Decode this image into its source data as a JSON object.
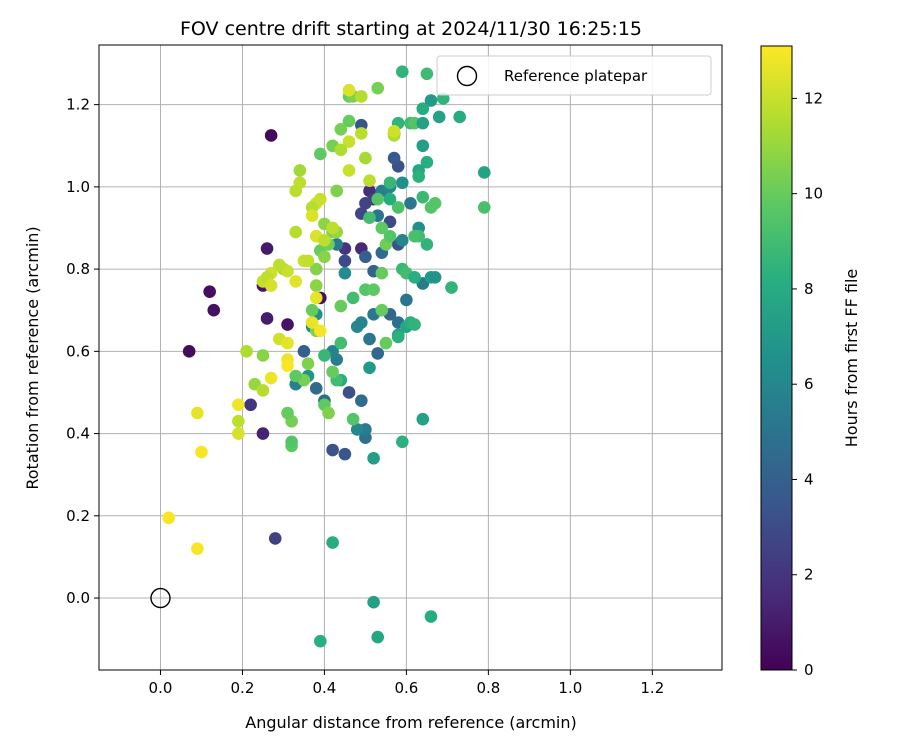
{
  "chart_data": {
    "type": "scatter",
    "title": "FOV centre drift starting at 2024/11/30 16:25:15",
    "xlabel": "Angular distance from reference (arcmin)",
    "ylabel": "Rotation from reference (arcmin)",
    "xlim": [
      -0.15,
      1.37
    ],
    "ylim": [
      -0.175,
      1.345
    ],
    "xticks": [
      0.0,
      0.2,
      0.4,
      0.6,
      0.8,
      1.0,
      1.2
    ],
    "yticks": [
      0.0,
      0.2,
      0.4,
      0.6,
      0.8,
      1.0,
      1.2
    ],
    "xtick_labels": [
      "0.0",
      "0.2",
      "0.4",
      "0.6",
      "0.8",
      "1.0",
      "1.2"
    ],
    "ytick_labels": [
      "0.0",
      "0.2",
      "0.4",
      "0.6",
      "0.8",
      "1.0",
      "1.2"
    ],
    "grid": true,
    "colormap": "viridis",
    "colorbar": {
      "label": "Hours from first FF file",
      "min": 0,
      "max": 13.1,
      "ticks": [
        0,
        2,
        4,
        6,
        8,
        10,
        12
      ],
      "tick_labels": [
        "0",
        "2",
        "4",
        "6",
        "8",
        "10",
        "12"
      ]
    },
    "legend": {
      "placement": "top-right",
      "entries": [
        "Reference platepar"
      ]
    },
    "reference": {
      "x": 0.0,
      "y": 0.0,
      "label": "Reference platepar"
    },
    "points": [
      [
        0.27,
        1.125,
        0.3
      ],
      [
        0.49,
        1.15,
        3.5
      ],
      [
        0.25,
        0.76,
        0.8
      ],
      [
        0.26,
        0.85,
        0.9
      ],
      [
        0.26,
        0.68,
        1.0
      ],
      [
        0.31,
        0.665,
        0.7
      ],
      [
        0.39,
        0.73,
        0.5
      ],
      [
        0.12,
        0.745,
        0.5
      ],
      [
        0.13,
        0.7,
        0.6
      ],
      [
        0.07,
        0.6,
        0.4
      ],
      [
        0.25,
        0.4,
        1.3
      ],
      [
        0.22,
        0.47,
        2.0
      ],
      [
        0.28,
        0.145,
        2.5
      ],
      [
        0.49,
        0.85,
        1.5
      ],
      [
        0.45,
        0.85,
        2.0
      ],
      [
        0.51,
        0.99,
        1.7
      ],
      [
        0.52,
        0.97,
        2.3
      ],
      [
        0.5,
        0.96,
        2.6
      ],
      [
        0.45,
        0.82,
        3.0
      ],
      [
        0.46,
        0.5,
        3.2
      ],
      [
        0.42,
        0.36,
        3.3
      ],
      [
        0.45,
        0.35,
        3.5
      ],
      [
        0.35,
        0.6,
        4.0
      ],
      [
        0.38,
        0.51,
        4.5
      ],
      [
        0.4,
        0.48,
        4.5
      ],
      [
        0.49,
        0.935,
        2.7
      ],
      [
        0.56,
        0.915,
        2.9
      ],
      [
        0.58,
        1.05,
        3.2
      ],
      [
        0.57,
        1.07,
        3.7
      ],
      [
        0.57,
        1.13,
        3.0
      ],
      [
        0.58,
        0.86,
        3.4
      ],
      [
        0.5,
        0.83,
        4.0
      ],
      [
        0.52,
        0.795,
        4.2
      ],
      [
        0.54,
        0.84,
        4.5
      ],
      [
        0.56,
        0.69,
        4.3
      ],
      [
        0.58,
        0.67,
        4.8
      ],
      [
        0.6,
        0.725,
        5.0
      ],
      [
        0.61,
        0.96,
        5.2
      ],
      [
        0.53,
        0.93,
        5.0
      ],
      [
        0.54,
        0.99,
        5.5
      ],
      [
        0.56,
        1.0,
        6.0
      ],
      [
        0.59,
        1.01,
        6.5
      ],
      [
        0.59,
        0.87,
        6.0
      ],
      [
        0.63,
        0.9,
        6.5
      ],
      [
        0.64,
        0.765,
        5.5
      ],
      [
        0.66,
        0.78,
        7.0
      ],
      [
        0.67,
        0.78,
        6.8
      ],
      [
        0.52,
        0.69,
        5.3
      ],
      [
        0.53,
        0.595,
        4.4
      ],
      [
        0.51,
        0.63,
        5.1
      ],
      [
        0.49,
        0.48,
        4.6
      ],
      [
        0.5,
        0.39,
        4.9
      ],
      [
        0.5,
        0.41,
        5.4
      ],
      [
        0.48,
        0.41,
        6.0
      ],
      [
        0.43,
        0.58,
        5.6
      ],
      [
        0.42,
        0.6,
        5.8
      ],
      [
        0.43,
        0.86,
        5.5
      ],
      [
        0.45,
        0.79,
        6.3
      ],
      [
        0.33,
        0.52,
        5.7
      ],
      [
        0.36,
        0.54,
        6.7
      ],
      [
        0.37,
        0.66,
        6.2
      ],
      [
        0.38,
        0.69,
        6.5
      ],
      [
        0.48,
        0.66,
        6.1
      ],
      [
        0.49,
        0.67,
        5.9
      ],
      [
        0.51,
        0.56,
        7.0
      ],
      [
        0.52,
        0.34,
        7.3
      ],
      [
        0.59,
        0.38,
        8.3
      ],
      [
        0.64,
        0.435,
        7.5
      ],
      [
        0.42,
        0.135,
        8.0
      ],
      [
        0.52,
        -0.01,
        7.4
      ],
      [
        0.53,
        -0.095,
        7.8
      ],
      [
        0.66,
        -0.045,
        8.0
      ],
      [
        0.39,
        -0.105,
        8.2
      ],
      [
        0.58,
        0.64,
        7.2
      ],
      [
        0.58,
        0.635,
        8.3
      ],
      [
        0.6,
        0.66,
        7.8
      ],
      [
        0.61,
        0.67,
        8.2
      ],
      [
        0.62,
        0.665,
        8.5
      ],
      [
        0.65,
        0.86,
        8.5
      ],
      [
        0.63,
        0.88,
        9.0
      ],
      [
        0.62,
        0.88,
        9.2
      ],
      [
        0.59,
        0.8,
        8.8
      ],
      [
        0.6,
        0.79,
        9.0
      ],
      [
        0.56,
        1.01,
        8.7
      ],
      [
        0.56,
        0.97,
        8.0
      ],
      [
        0.58,
        0.95,
        9.3
      ],
      [
        0.58,
        1.155,
        8.5
      ],
      [
        0.61,
        1.155,
        9.0
      ],
      [
        0.62,
        1.155,
        9.5
      ],
      [
        0.59,
        1.28,
        8.5
      ],
      [
        0.65,
        1.275,
        8.9
      ],
      [
        0.64,
        1.155,
        7.5
      ],
      [
        0.66,
        1.21,
        7.0
      ],
      [
        0.68,
        1.17,
        7.5
      ],
      [
        0.73,
        1.17,
        8.0
      ],
      [
        0.69,
        1.215,
        8.5
      ],
      [
        0.64,
        1.19,
        8.0
      ],
      [
        0.64,
        1.1,
        7.3
      ],
      [
        0.65,
        1.06,
        8.2
      ],
      [
        0.63,
        1.04,
        7.8
      ],
      [
        0.63,
        1.025,
        8.3
      ],
      [
        0.64,
        0.975,
        8.8
      ],
      [
        0.66,
        0.95,
        9.5
      ],
      [
        0.67,
        0.96,
        9.5
      ],
      [
        0.79,
        1.035,
        7.5
      ],
      [
        0.79,
        0.95,
        9.2
      ],
      [
        0.71,
        0.755,
        8.5
      ],
      [
        0.62,
        0.78,
        8.2
      ],
      [
        0.53,
        0.97,
        9.5
      ],
      [
        0.51,
        0.925,
        9.0
      ],
      [
        0.5,
        0.75,
        9.5
      ],
      [
        0.52,
        0.75,
        9.8
      ],
      [
        0.54,
        0.79,
        10.0
      ],
      [
        0.54,
        0.7,
        10.0
      ],
      [
        0.55,
        0.62,
        10.0
      ],
      [
        0.55,
        0.86,
        10.2
      ],
      [
        0.54,
        0.9,
        9.8
      ],
      [
        0.56,
        0.88,
        9.5
      ],
      [
        0.47,
        0.73,
        9.0
      ],
      [
        0.47,
        0.435,
        9.5
      ],
      [
        0.44,
        0.53,
        8.0
      ],
      [
        0.43,
        0.53,
        9.0
      ],
      [
        0.44,
        0.62,
        9.0
      ],
      [
        0.4,
        0.59,
        8.7
      ],
      [
        0.42,
        0.55,
        10.0
      ],
      [
        0.4,
        0.47,
        9.8
      ],
      [
        0.41,
        0.45,
        10.5
      ],
      [
        0.35,
        0.53,
        10.3
      ],
      [
        0.36,
        0.57,
        10.5
      ],
      [
        0.33,
        0.54,
        9.8
      ],
      [
        0.32,
        0.43,
        10.3
      ],
      [
        0.32,
        0.37,
        9.8
      ],
      [
        0.32,
        0.38,
        9.5
      ],
      [
        0.31,
        0.45,
        10.0
      ],
      [
        0.44,
        0.71,
        10.0
      ],
      [
        0.38,
        0.65,
        10.5
      ],
      [
        0.37,
        0.7,
        10.0
      ],
      [
        0.38,
        0.76,
        10.8
      ],
      [
        0.38,
        0.8,
        10.6
      ],
      [
        0.39,
        0.845,
        10.0
      ],
      [
        0.41,
        0.86,
        10.2
      ],
      [
        0.4,
        0.83,
        10.7
      ],
      [
        0.42,
        0.89,
        10.5
      ],
      [
        0.43,
        0.89,
        11.0
      ],
      [
        0.4,
        0.91,
        10.8
      ],
      [
        0.39,
        1.08,
        9.8
      ],
      [
        0.42,
        1.1,
        10.3
      ],
      [
        0.44,
        1.14,
        10.3
      ],
      [
        0.46,
        1.16,
        10.0
      ],
      [
        0.46,
        1.22,
        10.0
      ],
      [
        0.47,
        1.22,
        10.5
      ],
      [
        0.53,
        1.24,
        10.3
      ],
      [
        0.49,
        1.22,
        11.6
      ],
      [
        0.46,
        1.235,
        12.4
      ],
      [
        0.49,
        1.13,
        11.7
      ],
      [
        0.46,
        1.11,
        12.0
      ],
      [
        0.44,
        1.09,
        11.5
      ],
      [
        0.43,
        0.99,
        10.5
      ],
      [
        0.46,
        1.04,
        12.0
      ],
      [
        0.5,
        1.07,
        11.3
      ],
      [
        0.51,
        1.015,
        11.8
      ],
      [
        0.57,
        1.125,
        11.5
      ],
      [
        0.57,
        1.135,
        12.2
      ],
      [
        0.33,
        0.99,
        11.7
      ],
      [
        0.34,
        1.01,
        11.8
      ],
      [
        0.34,
        1.04,
        11.2
      ],
      [
        0.35,
        0.82,
        12.0
      ],
      [
        0.36,
        0.82,
        11.9
      ],
      [
        0.38,
        0.96,
        12.2
      ],
      [
        0.37,
        0.95,
        11.6
      ],
      [
        0.39,
        0.97,
        12.0
      ],
      [
        0.37,
        0.93,
        12.4
      ],
      [
        0.38,
        0.88,
        12.4
      ],
      [
        0.4,
        0.87,
        11.8
      ],
      [
        0.42,
        0.9,
        11.8
      ],
      [
        0.33,
        0.89,
        11.6
      ],
      [
        0.3,
        0.8,
        11.3
      ],
      [
        0.31,
        0.795,
        12.0
      ],
      [
        0.29,
        0.81,
        11.8
      ],
      [
        0.27,
        0.79,
        12.1
      ],
      [
        0.25,
        0.77,
        12.0
      ],
      [
        0.26,
        0.78,
        11.8
      ],
      [
        0.27,
        0.76,
        12.3
      ],
      [
        0.33,
        0.77,
        12.5
      ],
      [
        0.29,
        0.63,
        12.2
      ],
      [
        0.31,
        0.62,
        12.6
      ],
      [
        0.37,
        0.67,
        12.7
      ],
      [
        0.38,
        0.73,
        12.6
      ],
      [
        0.39,
        0.65,
        12.9
      ],
      [
        0.31,
        0.58,
        12.8
      ],
      [
        0.31,
        0.565,
        13.0
      ],
      [
        0.21,
        0.6,
        11.5
      ],
      [
        0.25,
        0.59,
        10.7
      ],
      [
        0.23,
        0.52,
        11.0
      ],
      [
        0.25,
        0.505,
        11.6
      ],
      [
        0.27,
        0.535,
        12.8
      ],
      [
        0.19,
        0.47,
        12.8
      ],
      [
        0.19,
        0.43,
        11.8
      ],
      [
        0.19,
        0.4,
        12.3
      ],
      [
        0.09,
        0.45,
        12.6
      ],
      [
        0.1,
        0.355,
        13.0
      ],
      [
        0.02,
        0.195,
        13.0
      ],
      [
        0.09,
        0.12,
        13.0
      ]
    ]
  }
}
